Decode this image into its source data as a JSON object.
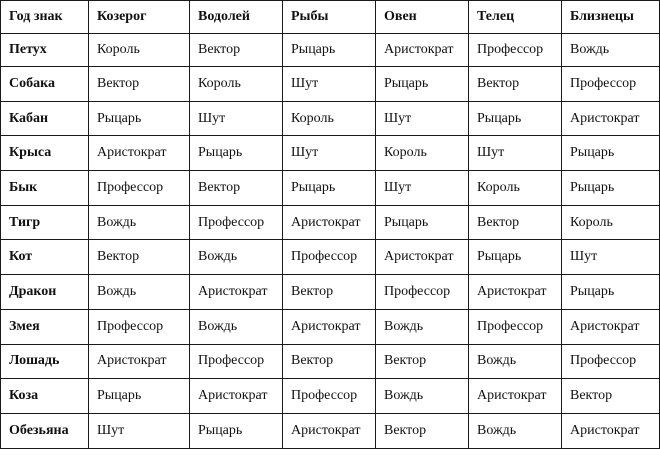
{
  "table": {
    "headers": [
      "Год знак",
      "Козерог",
      "Водолей",
      "Рыбы",
      "Овен",
      "Телец",
      "Близнецы"
    ],
    "rows": [
      [
        "Петух",
        "Король",
        "Вектор",
        "Рыцарь",
        "Аристократ",
        "Профессор",
        "Вождь"
      ],
      [
        "Собака",
        "Вектор",
        "Король",
        "Шут",
        "Рыцарь",
        "Вектор",
        "Профессор"
      ],
      [
        "Кабан",
        "Рыцарь",
        "Шут",
        "Король",
        "Шут",
        "Рыцарь",
        "Аристократ"
      ],
      [
        "Крыса",
        "Аристократ",
        "Рыцарь",
        "Шут",
        "Король",
        "Шут",
        "Рыцарь"
      ],
      [
        "Бык",
        "Профессор",
        "Вектор",
        "Рыцарь",
        "Шут",
        "Король",
        "Рыцарь"
      ],
      [
        "Тигр",
        "Вождь",
        "Профессор",
        "Аристократ",
        "Рыцарь",
        "Вектор",
        "Король"
      ],
      [
        "Кот",
        "Вектор",
        "Вождь",
        "Профессор",
        "Аристократ",
        "Рыцарь",
        "Шут"
      ],
      [
        "Дракон",
        "Вождь",
        "Аристократ",
        "Вектор",
        "Профессор",
        "Аристократ",
        "Рыцарь"
      ],
      [
        "Змея",
        "Профессор",
        "Вождь",
        "Аристократ",
        "Вождь",
        "Профессор",
        "Аристократ"
      ],
      [
        "Лошадь",
        "Аристократ",
        "Профессор",
        "Вектор",
        "Вектор",
        "Вождь",
        "Профессор"
      ],
      [
        "Коза",
        "Рыцарь",
        "Аристократ",
        "Профессор",
        "Вождь",
        "Аристократ",
        "Вектор"
      ],
      [
        "Обезьяна",
        "Шут",
        "Рыцарь",
        "Аристократ",
        "Вектор",
        "Вождь",
        "Аристократ"
      ]
    ]
  }
}
